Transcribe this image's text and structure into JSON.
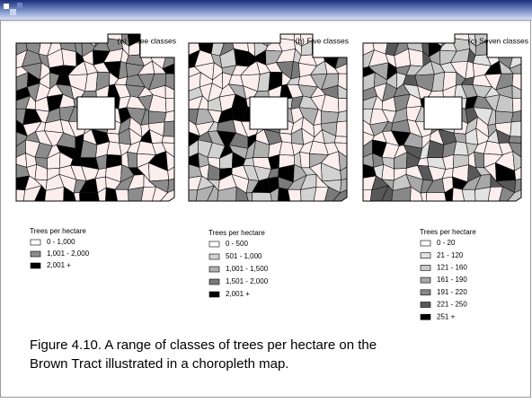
{
  "maps": [
    {
      "title": "(a) Three classes",
      "legend": {
        "title": "Trees per hectare",
        "items": [
          {
            "label": "0 - 1,000",
            "color": "#fdeeee"
          },
          {
            "label": "1,001 - 2,000",
            "color": "#8c8c8c"
          },
          {
            "label": "2,001 +",
            "color": "#000000"
          }
        ]
      }
    },
    {
      "title": "(b) Five classes",
      "legend": {
        "title": "Trees per hectare",
        "items": [
          {
            "label": "0 - 500",
            "color": "#fdeeee"
          },
          {
            "label": "501 - 1,000",
            "color": "#d2d2d2"
          },
          {
            "label": "1,001 - 1,500",
            "color": "#b0b0b0"
          },
          {
            "label": "1,501 - 2,000",
            "color": "#7a7a7a"
          },
          {
            "label": "2,001 +",
            "color": "#000000"
          }
        ]
      }
    },
    {
      "title": "(c) Seven classes",
      "legend": {
        "title": "Trees per hectare",
        "items": [
          {
            "label": "0 - 20",
            "color": "#fdeeee"
          },
          {
            "label": "21 - 120",
            "color": "#e2e2e2"
          },
          {
            "label": "121 - 160",
            "color": "#c8c8c8"
          },
          {
            "label": "161 - 190",
            "color": "#a8a8a8"
          },
          {
            "label": "191 - 220",
            "color": "#888888"
          },
          {
            "label": "221 - 250",
            "color": "#585858"
          },
          {
            "label": "251 +",
            "color": "#000000"
          }
        ]
      }
    }
  ],
  "caption": [
    "Figure 4.10.  A range of classes of trees per hectare on the",
    "Brown Tract illustrated in a choropleth map."
  ]
}
